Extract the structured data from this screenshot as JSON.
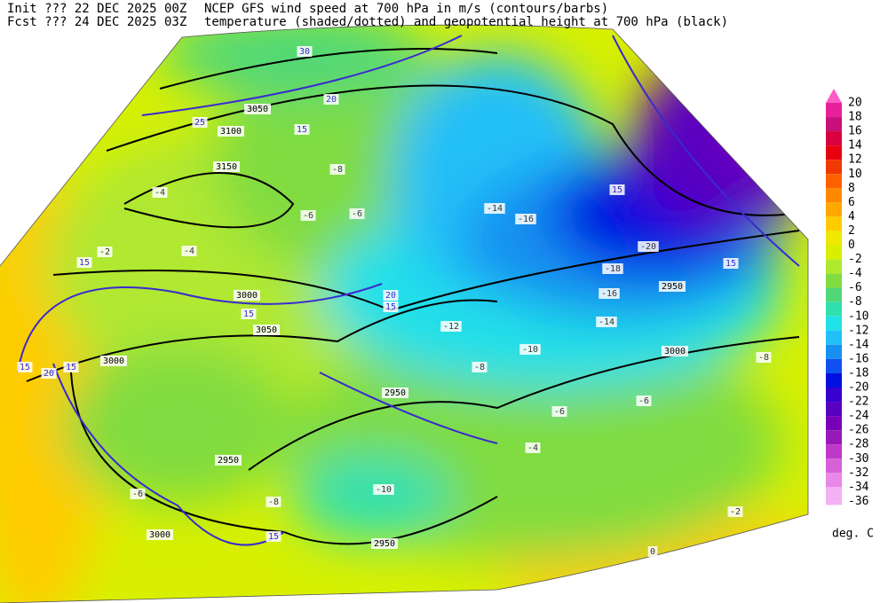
{
  "header": {
    "init": "Init  ??? 22 DEC 2025 00Z",
    "fcst": "Fcst ??? 24 DEC 2025 03Z",
    "title_line1": "NCEP GFS wind speed at 700 hPa in m/s (contours/barbs)",
    "title_line2": "temperature (shaded/dotted) and geopotential height at 700 hPa (black)"
  },
  "colorbar": {
    "unit": "deg. C",
    "levels": [
      {
        "label": "20",
        "color": "#ff5cc8"
      },
      {
        "label": "18",
        "color": "#e8209a"
      },
      {
        "label": "16",
        "color": "#c8107a"
      },
      {
        "label": "14",
        "color": "#d80040"
      },
      {
        "label": "12",
        "color": "#e80010"
      },
      {
        "label": "10",
        "color": "#f03800"
      },
      {
        "label": "8",
        "color": "#ff6000"
      },
      {
        "label": "6",
        "color": "#ff8800"
      },
      {
        "label": "4",
        "color": "#ffa800"
      },
      {
        "label": "2",
        "color": "#ffcc00"
      },
      {
        "label": "0",
        "color": "#f0e800"
      },
      {
        "label": "-2",
        "color": "#d8f000"
      },
      {
        "label": "-4",
        "color": "#b0e830"
      },
      {
        "label": "-6",
        "color": "#80dc40"
      },
      {
        "label": "-8",
        "color": "#50d878"
      },
      {
        "label": "-10",
        "color": "#30e0b0"
      },
      {
        "label": "-12",
        "color": "#20e0e8"
      },
      {
        "label": "-14",
        "color": "#20c0f8"
      },
      {
        "label": "-16",
        "color": "#1890f0"
      },
      {
        "label": "-18",
        "color": "#1050f0"
      },
      {
        "label": "-20",
        "color": "#0010e0"
      },
      {
        "label": "-22",
        "color": "#3800d0"
      },
      {
        "label": "-24",
        "color": "#5800c0"
      },
      {
        "label": "-26",
        "color": "#7800b8"
      },
      {
        "label": "-28",
        "color": "#9818b8"
      },
      {
        "label": "-30",
        "color": "#c038c8"
      },
      {
        "label": "-32",
        "color": "#d860d8"
      },
      {
        "label": "-34",
        "color": "#e888e8"
      },
      {
        "label": "-36",
        "color": "#f4b0f4"
      }
    ]
  },
  "map_labels": {
    "heights": [
      "3150",
      "3100",
      "3050",
      "3000",
      "3050",
      "3000",
      "2950",
      "2950",
      "2950",
      "3000",
      "2950",
      "3000"
    ],
    "wind": [
      "15",
      "20",
      "15",
      "15",
      "20",
      "25",
      "15",
      "20",
      "15",
      "15",
      "15",
      "15",
      "15",
      "30"
    ],
    "temperature": [
      "-20",
      "-18",
      "-16",
      "-14",
      "-12",
      "-10",
      "-8",
      "-6",
      "-6",
      "-4",
      "-2",
      "0",
      "-16",
      "-14",
      "-10",
      "-8",
      "-6",
      "-4",
      "-4",
      "-2",
      "-6",
      "-8",
      "-6",
      "-8"
    ]
  }
}
